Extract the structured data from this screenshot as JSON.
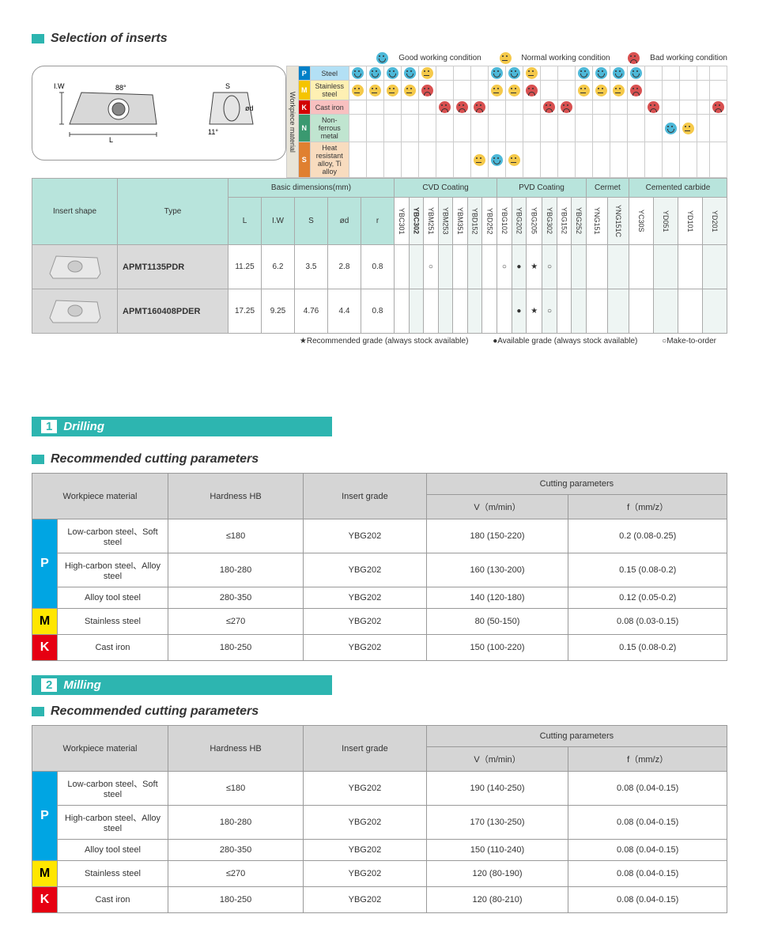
{
  "title_selection": "Selection of inserts",
  "legend": {
    "good": "Good working condition",
    "normal": "Normal working condition",
    "bad": "Bad working condition"
  },
  "diagram_labels": {
    "angle1": "88°",
    "angle2": "11°",
    "iw": "I.W",
    "l": "L",
    "s": "S",
    "od": "ød"
  },
  "material_header": "Workpiece material",
  "materials": [
    {
      "code": "P",
      "name": "Steel"
    },
    {
      "code": "M",
      "name": "Stainless steel"
    },
    {
      "code": "K",
      "name": "Cast iron"
    },
    {
      "code": "N",
      "name": "Non-ferrous metal"
    },
    {
      "code": "S",
      "name": "Heat resistant alloy, Ti alloy"
    }
  ],
  "material_emoji": {
    "cols": 22,
    "rows": [
      [
        "g",
        "g",
        "g",
        "g",
        "n",
        "",
        "",
        "",
        "g",
        "g",
        "n",
        "",
        "",
        "g",
        "g",
        "g",
        "g",
        "",
        "",
        "",
        "",
        ""
      ],
      [
        "n",
        "n",
        "n",
        "n",
        "b",
        "",
        "",
        "",
        "n",
        "n",
        "b",
        "",
        "",
        "n",
        "n",
        "n",
        "b",
        "",
        "",
        "",
        "",
        ""
      ],
      [
        "",
        "",
        "",
        "",
        "",
        "b",
        "b",
        "b",
        "",
        "",
        "",
        "b",
        "b",
        "",
        "",
        "",
        "",
        "b",
        "",
        "",
        "",
        "b"
      ],
      [
        "",
        "",
        "",
        "",
        "",
        "",
        "",
        "",
        "",
        "",
        "",
        "",
        "",
        "",
        "",
        "",
        "",
        "",
        "g",
        "n",
        "",
        ""
      ],
      [
        "",
        "",
        "",
        "",
        "",
        "",
        "",
        "n",
        "g",
        "n",
        "",
        "",
        "",
        "",
        "",
        "",
        "",
        "",
        "",
        "",
        "",
        ""
      ]
    ]
  },
  "insert_table": {
    "headers": {
      "shape": "Insert shape",
      "type": "Type",
      "basic": "Basic dimensions(mm)",
      "cvd": "CVD Coating",
      "pvd": "PVD Coating",
      "cermet": "Cermet",
      "carbide": "Cemented carbide",
      "dims": [
        "L",
        "I.W",
        "S",
        "ød",
        "r"
      ],
      "grades": [
        "YBC301",
        "YBC302",
        "YBM251",
        "YBM253",
        "YBM351",
        "YBD152",
        "YBD252",
        "YBG102",
        "YBG202",
        "YBG205",
        "YBG302",
        "YBG152",
        "YBG252",
        "YNG151",
        "YNG151C",
        "YC30S",
        "YD051",
        "YD101",
        "YD201"
      ],
      "bold_grades": [
        "YBC302"
      ]
    },
    "rows": [
      {
        "type": "APMT1135PDR",
        "dims": [
          "11.25",
          "6.2",
          "3.5",
          "2.8",
          "0.8"
        ],
        "marks": [
          "",
          "",
          "○",
          "",
          "",
          "",
          "",
          "○",
          "●",
          "★",
          "○",
          "",
          "",
          "",
          "",
          "",
          "",
          "",
          ""
        ]
      },
      {
        "type": "APMT160408PDER",
        "dims": [
          "17.25",
          "9.25",
          "4.76",
          "4.4",
          "0.8"
        ],
        "marks": [
          "",
          "",
          "",
          "",
          "",
          "",
          "",
          "",
          "●",
          "★",
          "○",
          "",
          "",
          "",
          "",
          "",
          "",
          "",
          ""
        ]
      }
    ],
    "stripe_cols": [
      1,
      3,
      5,
      8,
      10,
      12,
      14,
      16,
      18
    ]
  },
  "grade_legend": {
    "star": "★Recommended grade (always stock available)",
    "dot": "●Available grade (always stock available)",
    "circle": "○Make-to-order"
  },
  "section1": {
    "num": "1",
    "label": "Drilling"
  },
  "section2": {
    "num": "2",
    "label": "Milling"
  },
  "rec_title": "Recommended cutting parameters",
  "cut_headers": {
    "material": "Workpiece material",
    "hardness": "Hardness HB",
    "grade": "Insert grade",
    "params": "Cutting parameters",
    "v": "V（m/min）",
    "f": "f（mm/z）"
  },
  "drilling_rows": [
    {
      "badge": "P",
      "span": 3,
      "mat": "Low-carbon steel、Soft steel",
      "hb": "≤180",
      "grade": "YBG202",
      "v": "180 (150-220)",
      "f": "0.2 (0.08-0.25)"
    },
    {
      "mat": "High-carbon steel、Alloy steel",
      "hb": "180-280",
      "grade": "YBG202",
      "v": "160 (130-200)",
      "f": "0.15 (0.08-0.2)"
    },
    {
      "mat": "Alloy tool steel",
      "hb": "280-350",
      "grade": "YBG202",
      "v": "140 (120-180)",
      "f": "0.12 (0.05-0.2)"
    },
    {
      "badge": "M",
      "span": 1,
      "mat": "Stainless steel",
      "hb": "≤270",
      "grade": "YBG202",
      "v": "80 (50-150)",
      "f": "0.08 (0.03-0.15)"
    },
    {
      "badge": "K",
      "span": 1,
      "mat": "Cast iron",
      "hb": "180-250",
      "grade": "YBG202",
      "v": "150 (100-220)",
      "f": "0.15 (0.08-0.2)"
    }
  ],
  "milling_rows": [
    {
      "badge": "P",
      "span": 3,
      "mat": "Low-carbon steel、Soft steel",
      "hb": "≤180",
      "grade": "YBG202",
      "v": "190 (140-250)",
      "f": "0.08 (0.04-0.15)"
    },
    {
      "mat": "High-carbon steel、Alloy steel",
      "hb": "180-280",
      "grade": "YBG202",
      "v": "170 (130-250)",
      "f": "0.08 (0.04-0.15)"
    },
    {
      "mat": "Alloy tool steel",
      "hb": "280-350",
      "grade": "YBG202",
      "v": "150 (110-240)",
      "f": "0.08 (0.04-0.15)"
    },
    {
      "badge": "M",
      "span": 1,
      "mat": "Stainless steel",
      "hb": "≤270",
      "grade": "YBG202",
      "v": "120 (80-190)",
      "f": "0.08 (0.04-0.15)"
    },
    {
      "badge": "K",
      "span": 1,
      "mat": "Cast iron",
      "hb": "180-250",
      "grade": "YBG202",
      "v": "120 (80-210)",
      "f": "0.08 (0.04-0.15)"
    }
  ],
  "colors": {
    "teal": "#2db5b0",
    "head_bg": "#b8e4dc",
    "p": "#00a5e3",
    "m": "#ffe600",
    "k": "#e60012",
    "n": "#3a9970",
    "s": "#e08030"
  }
}
